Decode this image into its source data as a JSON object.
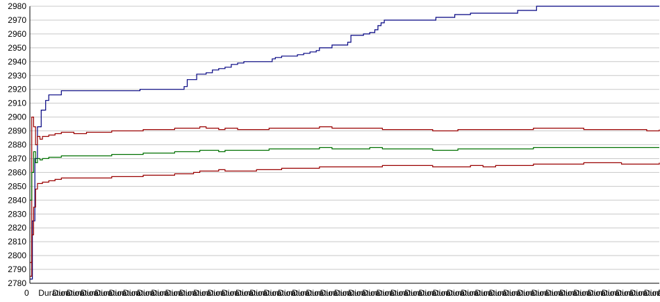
{
  "chart_data": {
    "type": "line",
    "title": "",
    "xlabel": "",
    "ylabel": "",
    "ylim": [
      2780,
      2980
    ],
    "yticks": [
      2780,
      2790,
      2800,
      2810,
      2820,
      2830,
      2840,
      2850,
      2860,
      2870,
      2880,
      2890,
      2900,
      2910,
      2920,
      2930,
      2940,
      2950,
      2960,
      2970,
      2980
    ],
    "grid": true,
    "legend": "none",
    "x_tick_labels_legible": false,
    "x_ticks": [
      "0",
      "Duration",
      "Duration",
      "Duration",
      "Duration",
      "Duration",
      "Duration",
      "Duration",
      "Duration",
      "Duration",
      "Duration",
      "Duration",
      "Duration",
      "Duration",
      "Duration",
      "Duration",
      "Duration",
      "Duration",
      "Duration",
      "Duration",
      "Duration",
      "Duration",
      "Duration",
      "Duration",
      "Duration",
      "Duration",
      "Duration",
      "Duration",
      "Duration",
      "Duration",
      "Duration",
      "Duration",
      "Duration",
      "Duration",
      "Duration",
      "Duration",
      "Duration",
      "Duration",
      "Duration",
      "Duration",
      "Duration",
      "Duration",
      "Duration",
      "Duration",
      "Duration",
      "Duration"
    ],
    "x_range": [
      0,
      100
    ],
    "series": [
      {
        "color": "#000080",
        "points": [
          [
            0,
            2783
          ],
          [
            0.4,
            2825
          ],
          [
            0.8,
            2870
          ],
          [
            1.2,
            2893
          ],
          [
            1.8,
            2905
          ],
          [
            2.5,
            2912
          ],
          [
            3,
            2916
          ],
          [
            4,
            2916
          ],
          [
            4.7,
            2916
          ],
          [
            5,
            2919
          ],
          [
            9,
            2919
          ],
          [
            13,
            2919
          ],
          [
            17,
            2919
          ],
          [
            17.5,
            2920
          ],
          [
            21,
            2920
          ],
          [
            24,
            2920
          ],
          [
            24.5,
            2922
          ],
          [
            25,
            2927
          ],
          [
            26,
            2927
          ],
          [
            26.5,
            2931
          ],
          [
            28,
            2932
          ],
          [
            29,
            2934
          ],
          [
            30,
            2935
          ],
          [
            31,
            2936
          ],
          [
            32,
            2938
          ],
          [
            33,
            2939
          ],
          [
            34,
            2940
          ],
          [
            36,
            2940
          ],
          [
            37,
            2940
          ],
          [
            38,
            2940
          ],
          [
            38.5,
            2942
          ],
          [
            39,
            2943
          ],
          [
            40,
            2944
          ],
          [
            41,
            2944
          ],
          [
            42,
            2944
          ],
          [
            42.5,
            2945
          ],
          [
            43.5,
            2946
          ],
          [
            44.5,
            2947
          ],
          [
            45.5,
            2948
          ],
          [
            46,
            2950
          ],
          [
            47,
            2950
          ],
          [
            48,
            2952
          ],
          [
            49,
            2952
          ],
          [
            50,
            2952
          ],
          [
            50.5,
            2954
          ],
          [
            51,
            2959
          ],
          [
            52,
            2959
          ],
          [
            53,
            2960
          ],
          [
            54,
            2961
          ],
          [
            54.8,
            2963
          ],
          [
            55.3,
            2966
          ],
          [
            55.8,
            2968
          ],
          [
            56.3,
            2970
          ],
          [
            57,
            2970
          ],
          [
            60,
            2970
          ],
          [
            63,
            2970
          ],
          [
            64,
            2970
          ],
          [
            64.5,
            2972
          ],
          [
            66,
            2972
          ],
          [
            67,
            2972
          ],
          [
            67.5,
            2974
          ],
          [
            69,
            2974
          ],
          [
            70,
            2975
          ],
          [
            73,
            2975
          ],
          [
            76,
            2975
          ],
          [
            77,
            2975
          ],
          [
            77.5,
            2977
          ],
          [
            79,
            2977
          ],
          [
            80,
            2977
          ],
          [
            80.5,
            2980
          ],
          [
            85,
            2980
          ],
          [
            90,
            2980
          ],
          [
            95,
            2980
          ],
          [
            100,
            2980
          ]
        ]
      },
      {
        "color": "#990000",
        "points": [
          [
            0,
            2785
          ],
          [
            0.3,
            2900
          ],
          [
            0.6,
            2893
          ],
          [
            0.9,
            2880
          ],
          [
            1.2,
            2886
          ],
          [
            1.6,
            2884
          ],
          [
            2,
            2886
          ],
          [
            3,
            2887
          ],
          [
            4,
            2888
          ],
          [
            5,
            2889
          ],
          [
            7,
            2888
          ],
          [
            9,
            2889
          ],
          [
            11,
            2889
          ],
          [
            13,
            2890
          ],
          [
            15,
            2890
          ],
          [
            17,
            2890
          ],
          [
            18,
            2891
          ],
          [
            21,
            2891
          ],
          [
            23,
            2892
          ],
          [
            26,
            2892
          ],
          [
            27,
            2893
          ],
          [
            28,
            2892
          ],
          [
            30,
            2891
          ],
          [
            31,
            2892
          ],
          [
            33,
            2891
          ],
          [
            36,
            2891
          ],
          [
            38,
            2892
          ],
          [
            40,
            2892
          ],
          [
            42,
            2892
          ],
          [
            44,
            2892
          ],
          [
            46,
            2893
          ],
          [
            48,
            2892
          ],
          [
            50,
            2892
          ],
          [
            52,
            2892
          ],
          [
            54,
            2892
          ],
          [
            56,
            2891
          ],
          [
            58,
            2891
          ],
          [
            60,
            2891
          ],
          [
            62,
            2891
          ],
          [
            64,
            2890
          ],
          [
            66,
            2890
          ],
          [
            68,
            2891
          ],
          [
            70,
            2891
          ],
          [
            72,
            2891
          ],
          [
            74,
            2891
          ],
          [
            76,
            2891
          ],
          [
            78,
            2891
          ],
          [
            80,
            2892
          ],
          [
            82,
            2892
          ],
          [
            84,
            2892
          ],
          [
            86,
            2892
          ],
          [
            88,
            2891
          ],
          [
            90,
            2891
          ],
          [
            92,
            2891
          ],
          [
            94,
            2891
          ],
          [
            96,
            2891
          ],
          [
            98,
            2890
          ],
          [
            100,
            2891
          ]
        ]
      },
      {
        "color": "#007000",
        "points": [
          [
            0,
            2840
          ],
          [
            0.3,
            2860
          ],
          [
            0.6,
            2875
          ],
          [
            0.9,
            2867
          ],
          [
            1.2,
            2870
          ],
          [
            1.6,
            2869
          ],
          [
            2,
            2870
          ],
          [
            3,
            2871
          ],
          [
            4,
            2871
          ],
          [
            5,
            2872
          ],
          [
            7,
            2872
          ],
          [
            9,
            2872
          ],
          [
            11,
            2872
          ],
          [
            13,
            2873
          ],
          [
            15,
            2873
          ],
          [
            17,
            2873
          ],
          [
            18,
            2874
          ],
          [
            21,
            2874
          ],
          [
            23,
            2875
          ],
          [
            26,
            2875
          ],
          [
            27,
            2876
          ],
          [
            28,
            2876
          ],
          [
            30,
            2875
          ],
          [
            31,
            2876
          ],
          [
            33,
            2876
          ],
          [
            36,
            2876
          ],
          [
            38,
            2877
          ],
          [
            40,
            2877
          ],
          [
            42,
            2877
          ],
          [
            44,
            2877
          ],
          [
            46,
            2878
          ],
          [
            48,
            2877
          ],
          [
            50,
            2877
          ],
          [
            52,
            2877
          ],
          [
            54,
            2878
          ],
          [
            56,
            2877
          ],
          [
            58,
            2877
          ],
          [
            60,
            2877
          ],
          [
            62,
            2877
          ],
          [
            64,
            2876
          ],
          [
            66,
            2876
          ],
          [
            68,
            2877
          ],
          [
            70,
            2877
          ],
          [
            72,
            2877
          ],
          [
            74,
            2877
          ],
          [
            76,
            2877
          ],
          [
            78,
            2877
          ],
          [
            80,
            2878
          ],
          [
            82,
            2878
          ],
          [
            84,
            2878
          ],
          [
            86,
            2878
          ],
          [
            88,
            2878
          ],
          [
            90,
            2878
          ],
          [
            92,
            2878
          ],
          [
            94,
            2878
          ],
          [
            96,
            2878
          ],
          [
            98,
            2878
          ],
          [
            100,
            2878
          ]
        ]
      },
      {
        "color": "#990000",
        "points": [
          [
            0,
            2795
          ],
          [
            0.3,
            2815
          ],
          [
            0.6,
            2835
          ],
          [
            0.9,
            2848
          ],
          [
            1.2,
            2852
          ],
          [
            1.6,
            2852
          ],
          [
            2,
            2853
          ],
          [
            3,
            2854
          ],
          [
            4,
            2855
          ],
          [
            5,
            2856
          ],
          [
            7,
            2856
          ],
          [
            9,
            2856
          ],
          [
            11,
            2856
          ],
          [
            13,
            2857
          ],
          [
            15,
            2857
          ],
          [
            17,
            2857
          ],
          [
            18,
            2858
          ],
          [
            21,
            2858
          ],
          [
            23,
            2859
          ],
          [
            26,
            2860
          ],
          [
            27,
            2861
          ],
          [
            28,
            2861
          ],
          [
            30,
            2862
          ],
          [
            31,
            2861
          ],
          [
            33,
            2861
          ],
          [
            36,
            2862
          ],
          [
            38,
            2862
          ],
          [
            40,
            2863
          ],
          [
            42,
            2863
          ],
          [
            44,
            2863
          ],
          [
            46,
            2864
          ],
          [
            48,
            2864
          ],
          [
            50,
            2864
          ],
          [
            52,
            2864
          ],
          [
            54,
            2864
          ],
          [
            56,
            2865
          ],
          [
            58,
            2865
          ],
          [
            60,
            2865
          ],
          [
            62,
            2865
          ],
          [
            64,
            2864
          ],
          [
            66,
            2864
          ],
          [
            68,
            2864
          ],
          [
            70,
            2865
          ],
          [
            72,
            2864
          ],
          [
            74,
            2865
          ],
          [
            76,
            2865
          ],
          [
            78,
            2865
          ],
          [
            80,
            2866
          ],
          [
            82,
            2866
          ],
          [
            84,
            2866
          ],
          [
            86,
            2866
          ],
          [
            88,
            2867
          ],
          [
            90,
            2867
          ],
          [
            92,
            2867
          ],
          [
            94,
            2866
          ],
          [
            96,
            2866
          ],
          [
            98,
            2866
          ],
          [
            100,
            2867
          ]
        ]
      }
    ]
  }
}
